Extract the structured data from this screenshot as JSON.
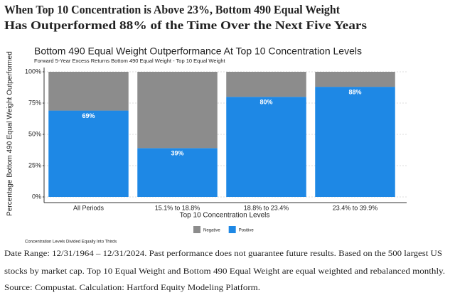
{
  "header": [
    "When Top 10 Concentration is Above 23%, Bottom 490 Equal Weight",
    "Has Outperformed 88% of the Time Over the Next Five Years"
  ],
  "footer": [
    "Date Range: 12/31/1964 – 12/31/2024. Past performance does not guarantee future results. Based on the 500 largest US",
    "stocks by market cap. Top 10 Equal Weight and Bottom 490 Equal Weight are equal weighted and rebalanced monthly.",
    "Source: Compustat. Calculation: Hartford Equity Modeling Platform."
  ],
  "chart_data": {
    "type": "bar",
    "stacked": true,
    "title": "Bottom 490 Equal Weight Outperformance At Top 10 Concentration Levels",
    "subtitle": "Forward 5-Year Excess Returns Bottom 490 Equal Weight - Top 10 Equal Weight",
    "x_label": "Top 10 Concentration Levels",
    "y_label": "Percentage Bottom 490 Equal Weight Outperformed",
    "annotation": "Concentration Levels Divided Equally Into Thirds",
    "categories": [
      "All Periods",
      "15.1% to 18.8%",
      "18.8% to 23.4%",
      "23.4% to 39.9%"
    ],
    "series": [
      {
        "name": "Negative",
        "color": "#8c8c8c",
        "values": [
          31,
          61,
          20,
          12
        ]
      },
      {
        "name": "Positive",
        "color": "#1e88e5",
        "values": [
          69,
          39,
          80,
          88
        ],
        "value_labels": [
          "69%",
          "39%",
          "80%",
          "88%"
        ]
      }
    ],
    "ylim": [
      0,
      100
    ],
    "yticks": [
      {
        "value": 0,
        "label": "0%"
      },
      {
        "value": 25,
        "label": "25%"
      },
      {
        "value": 50,
        "label": "50%"
      },
      {
        "value": 75,
        "label": "75%"
      },
      {
        "value": 100,
        "label": "100%"
      }
    ],
    "grid": true,
    "legend": "bottom"
  }
}
